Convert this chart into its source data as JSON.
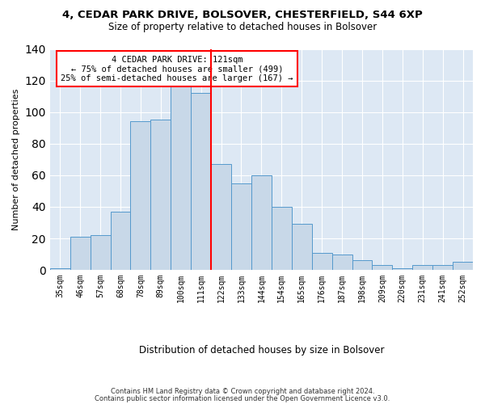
{
  "title1": "4, CEDAR PARK DRIVE, BOLSOVER, CHESTERFIELD, S44 6XP",
  "title2": "Size of property relative to detached houses in Bolsover",
  "xlabel": "Distribution of detached houses by size in Bolsover",
  "ylabel": "Number of detached properties",
  "footnote1": "Contains HM Land Registry data © Crown copyright and database right 2024.",
  "footnote2": "Contains public sector information licensed under the Open Government Licence v3.0.",
  "annotation_line1": "4 CEDAR PARK DRIVE: 121sqm",
  "annotation_line2": "← 75% of detached houses are smaller (499)",
  "annotation_line3": "25% of semi-detached houses are larger (167) →",
  "bar_color": "#c8d8e8",
  "bar_edge_color": "#5599cc",
  "vline_color": "red",
  "categories": [
    "35sqm",
    "46sqm",
    "57sqm",
    "68sqm",
    "78sqm",
    "89sqm",
    "100sqm",
    "111sqm",
    "122sqm",
    "133sqm",
    "144sqm",
    "154sqm",
    "165sqm",
    "176sqm",
    "187sqm",
    "198sqm",
    "209sqm",
    "220sqm",
    "231sqm",
    "241sqm",
    "252sqm"
  ],
  "values": [
    1,
    21,
    22,
    37,
    94,
    95,
    118,
    112,
    67,
    55,
    60,
    40,
    29,
    11,
    10,
    6,
    3,
    1,
    3,
    3,
    5
  ],
  "ylim": [
    0,
    140
  ],
  "background_color": "#dde8f4"
}
